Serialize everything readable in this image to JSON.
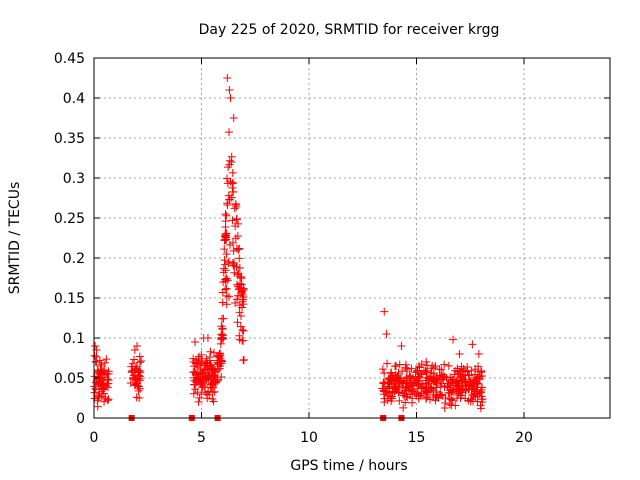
{
  "chart_data": {
    "type": "scatter",
    "title": "Day 225 of 2020, SRMTID for receiver krgg",
    "xlabel": "GPS time / hours",
    "ylabel": "SRMTID / TECUs",
    "xlim": [
      0,
      24
    ],
    "ylim": [
      0,
      0.45
    ],
    "x_ticks": [
      0,
      5,
      10,
      15,
      20
    ],
    "x_tick_labels": [
      "0",
      "5",
      "10",
      "15",
      "20"
    ],
    "y_ticks": [
      0,
      0.05,
      0.1,
      0.15,
      0.2,
      0.25,
      0.3,
      0.35,
      0.4,
      0.45
    ],
    "y_tick_labels": [
      "0",
      "0.05",
      "0.1",
      "0.15",
      "0.2",
      "0.25",
      "0.3",
      "0.35",
      "0.4",
      "0.45"
    ],
    "grid": true,
    "marker": "+",
    "series_color": "#ff0000",
    "zero_markers": {
      "marker": "square",
      "x": [
        1.75,
        4.55,
        5.75,
        13.45,
        14.3
      ],
      "y": 0
    },
    "clusters": [
      {
        "x_range": [
          0.0,
          0.7
        ],
        "y_center": 0.045,
        "y_spread": 0.014,
        "count": 70,
        "peaks": [
          [
            0.05,
            0.09
          ],
          [
            0.12,
            0.085
          ],
          [
            0.3,
            0.065
          ],
          [
            0.5,
            0.06
          ]
        ]
      },
      {
        "x_range": [
          1.7,
          2.2
        ],
        "y_center": 0.05,
        "y_spread": 0.013,
        "count": 40,
        "peaks": [
          [
            1.9,
            0.085
          ],
          [
            2.0,
            0.09
          ],
          [
            2.1,
            0.025
          ]
        ]
      },
      {
        "x_range": [
          4.6,
          5.6
        ],
        "y_center": 0.052,
        "y_spread": 0.017,
        "count": 110,
        "peaks": [
          [
            4.7,
            0.095
          ],
          [
            5.1,
            0.1
          ],
          [
            5.3,
            0.1
          ]
        ]
      },
      {
        "x_range": [
          5.6,
          7.0
        ],
        "envelope": [
          [
            5.6,
            0.05
          ],
          [
            5.9,
            0.1
          ],
          [
            6.1,
            0.25
          ],
          [
            6.3,
            0.37
          ],
          [
            6.5,
            0.29
          ],
          [
            6.7,
            0.25
          ],
          [
            6.9,
            0.18
          ],
          [
            7.0,
            0.15
          ]
        ],
        "count": 170,
        "peaks": [
          [
            6.2,
            0.425
          ],
          [
            6.3,
            0.41
          ],
          [
            6.35,
            0.4
          ],
          [
            6.5,
            0.375
          ],
          [
            6.9,
            0.11
          ]
        ]
      },
      {
        "x_range": [
          13.4,
          18.1
        ],
        "y_center": 0.042,
        "y_spread": 0.013,
        "count": 380,
        "peaks": [
          [
            13.5,
            0.133
          ],
          [
            13.6,
            0.105
          ],
          [
            14.3,
            0.09
          ],
          [
            16.7,
            0.098
          ],
          [
            17.0,
            0.08
          ],
          [
            17.6,
            0.092
          ],
          [
            17.9,
            0.08
          ],
          [
            18.0,
            0.012
          ]
        ]
      }
    ]
  }
}
